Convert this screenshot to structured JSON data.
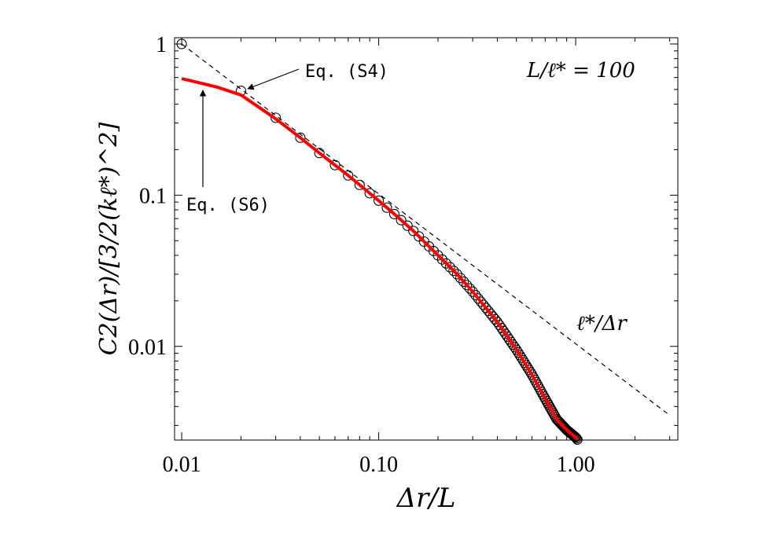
{
  "chart_data": {
    "type": "line",
    "xscale": "log",
    "yscale": "log",
    "xlim": [
      0.0092,
      3.3
    ],
    "ylim": [
      0.0024,
      1.1
    ],
    "x_ticks": [
      0.01,
      0.1,
      1.0
    ],
    "x_tick_labels": [
      "0.01",
      "0.10",
      "1.00"
    ],
    "y_ticks": [
      0.01,
      0.1,
      1.0
    ],
    "y_tick_labels": [
      "0.01",
      "0.1",
      "1"
    ],
    "xlabel": "Δr/L",
    "ylabel": "C2(Δr)/[3/2(kℓ*)^2]",
    "parameter_label": "L/ℓ* = 100",
    "grid": false,
    "series": [
      {
        "label": "Eq. (S4)",
        "style": "open-circle markers",
        "color": "#000000",
        "x": [
          0.01,
          0.02,
          0.03,
          0.04,
          0.05,
          0.06,
          0.07,
          0.08,
          0.09,
          0.1,
          0.12,
          0.15,
          0.2,
          0.25,
          0.3,
          0.4,
          0.5,
          0.6,
          0.7,
          0.8,
          0.9,
          1.0,
          1.05
        ],
        "y": [
          1.0,
          0.49,
          0.325,
          0.24,
          0.19,
          0.158,
          0.135,
          0.117,
          0.103,
          0.092,
          0.075,
          0.058,
          0.04,
          0.03,
          0.023,
          0.0145,
          0.0095,
          0.0065,
          0.0045,
          0.0033,
          0.0028,
          0.0025,
          0.0023
        ]
      },
      {
        "label": "Eq. (S6)",
        "style": "solid red line",
        "color": "#ff0000",
        "x": [
          0.01,
          0.015,
          0.02,
          0.03,
          0.04,
          0.05,
          0.06,
          0.07,
          0.08,
          0.09,
          0.1,
          0.12,
          0.15,
          0.2,
          0.25,
          0.3,
          0.4,
          0.5,
          0.6,
          0.7,
          0.8,
          0.9,
          1.0,
          1.05
        ],
        "y": [
          0.59,
          0.52,
          0.46,
          0.32,
          0.24,
          0.19,
          0.158,
          0.135,
          0.117,
          0.103,
          0.092,
          0.075,
          0.058,
          0.04,
          0.03,
          0.023,
          0.0145,
          0.0095,
          0.0065,
          0.0045,
          0.0033,
          0.0028,
          0.0025,
          0.0023
        ]
      },
      {
        "label": "ℓ*/Δr",
        "style": "dashed black line",
        "color": "#000000",
        "x": [
          0.01,
          3.0
        ],
        "y": [
          1.0,
          0.0035
        ]
      }
    ],
    "annotations": [
      {
        "text": "Eq. (S4)",
        "points_to": "circle markers",
        "arrow_target": [
          0.021,
          0.49
        ]
      },
      {
        "text": "Eq. (S6)",
        "points_to": "red curve",
        "arrow_target": [
          0.0126,
          0.55
        ]
      },
      {
        "text": "ℓ*/Δr",
        "points_to": "dashed line"
      },
      {
        "text": "L/ℓ* = 100"
      }
    ]
  }
}
